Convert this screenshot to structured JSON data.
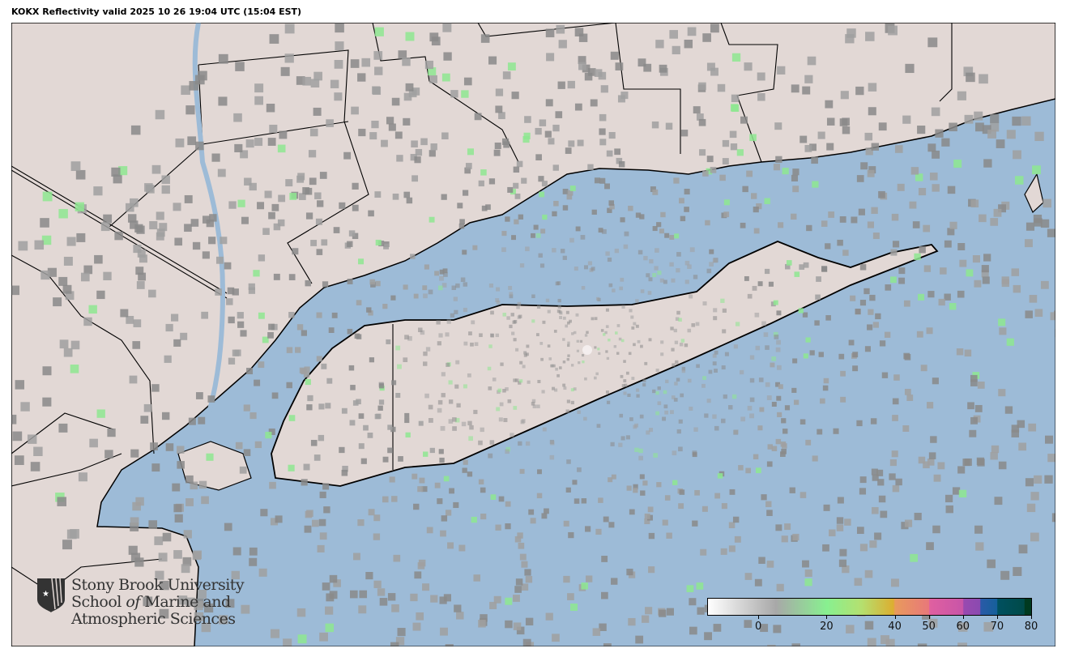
{
  "title": "KOKX Reflectivity valid 2025 10 26 19:04 UTC (15:04 EST)",
  "colors": {
    "land": "#e2d8d5",
    "water": "#9dbbd7",
    "border": "#000000"
  },
  "radar": {
    "site": "KOKX",
    "product": "Reflectivity"
  },
  "colorbar": {
    "range": [
      -15,
      80
    ],
    "ticks": [
      "0",
      "20",
      "40",
      "50",
      "60",
      "70",
      "80"
    ],
    "tick_values": [
      0,
      20,
      40,
      50,
      60,
      70,
      80
    ],
    "stops": [
      {
        "v": -15,
        "c": "#ffffff"
      },
      {
        "v": 5,
        "c": "#a8a8a8"
      },
      {
        "v": 20,
        "c": "#88f090"
      },
      {
        "v": 30,
        "c": "#b4e070"
      },
      {
        "v": 39.5,
        "c": "#dcae30"
      },
      {
        "v": 40,
        "c": "#e89a5c"
      },
      {
        "v": 50,
        "c": "#e8787a"
      },
      {
        "v": 50.1,
        "c": "#e060a0"
      },
      {
        "v": 60,
        "c": "#c855a8"
      },
      {
        "v": 60.1,
        "c": "#9a4ab0"
      },
      {
        "v": 65,
        "c": "#8a4ab0"
      },
      {
        "v": 65.1,
        "c": "#2a5aa8"
      },
      {
        "v": 70,
        "c": "#15609a"
      },
      {
        "v": 70.1,
        "c": "#005060"
      },
      {
        "v": 78,
        "c": "#004a48"
      },
      {
        "v": 78.1,
        "c": "#003a20"
      },
      {
        "v": 80,
        "c": "#003a20"
      }
    ]
  },
  "logo": {
    "line1": "Stony Brook University",
    "line2a": "School ",
    "line2b": "of",
    "line2c": " Marine and",
    "line3": "Atmospheric Sciences"
  }
}
